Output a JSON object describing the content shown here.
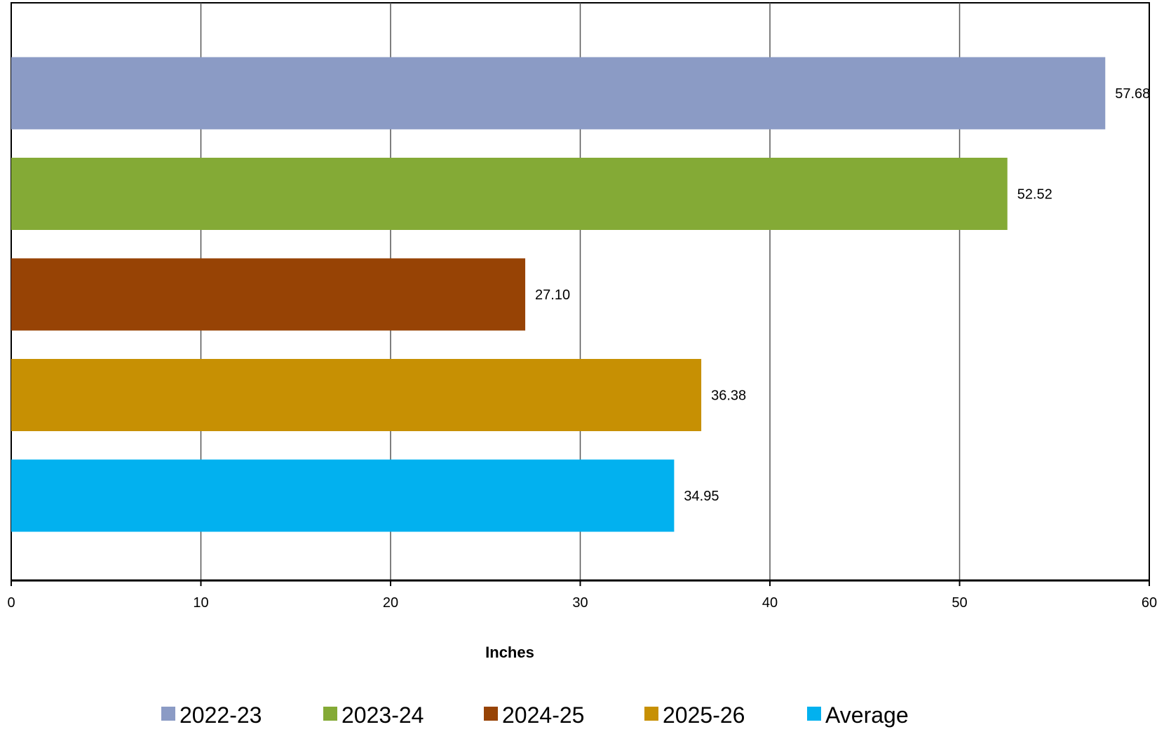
{
  "chart_data": {
    "type": "bar",
    "orientation": "horizontal",
    "xlabel": "Inches",
    "xlim": [
      0,
      60
    ],
    "xticks": [
      0,
      10,
      20,
      30,
      40,
      50,
      60
    ],
    "grid": "vertical",
    "legend_placement": "bottom",
    "series": [
      {
        "name": "2022-23",
        "value": 57.68,
        "label": "57.68",
        "color": "#8b9bc5"
      },
      {
        "name": "2023-24",
        "value": 52.52,
        "label": "52.52",
        "color": "#84aa36"
      },
      {
        "name": "2024-25",
        "value": 27.1,
        "label": "27.10",
        "color": "#974305"
      },
      {
        "name": "2025-26",
        "value": 36.38,
        "label": "36.38",
        "color": "#c79003"
      },
      {
        "name": "Average",
        "value": 34.95,
        "label": "34.95",
        "color": "#02b1ef"
      }
    ]
  }
}
